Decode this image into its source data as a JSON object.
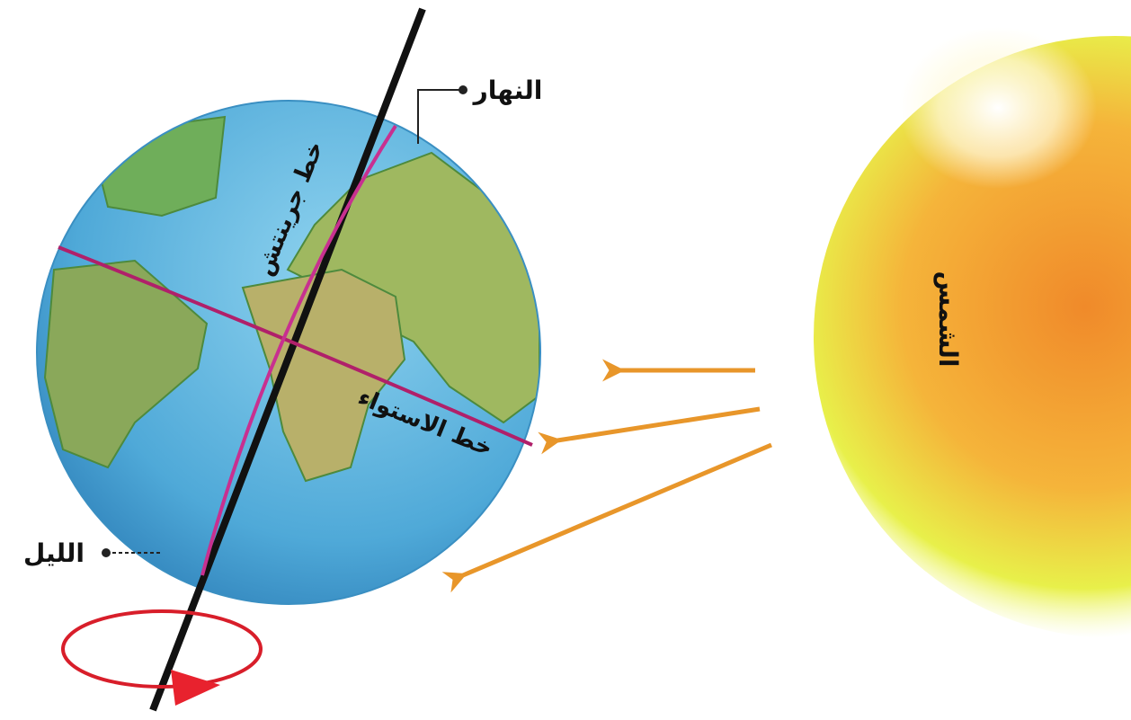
{
  "labels": {
    "day": "النهار",
    "night": "الليل",
    "greenwich": "خط جرينتش",
    "equator": "خط الاستواء",
    "sun": "الشمس"
  }
}
